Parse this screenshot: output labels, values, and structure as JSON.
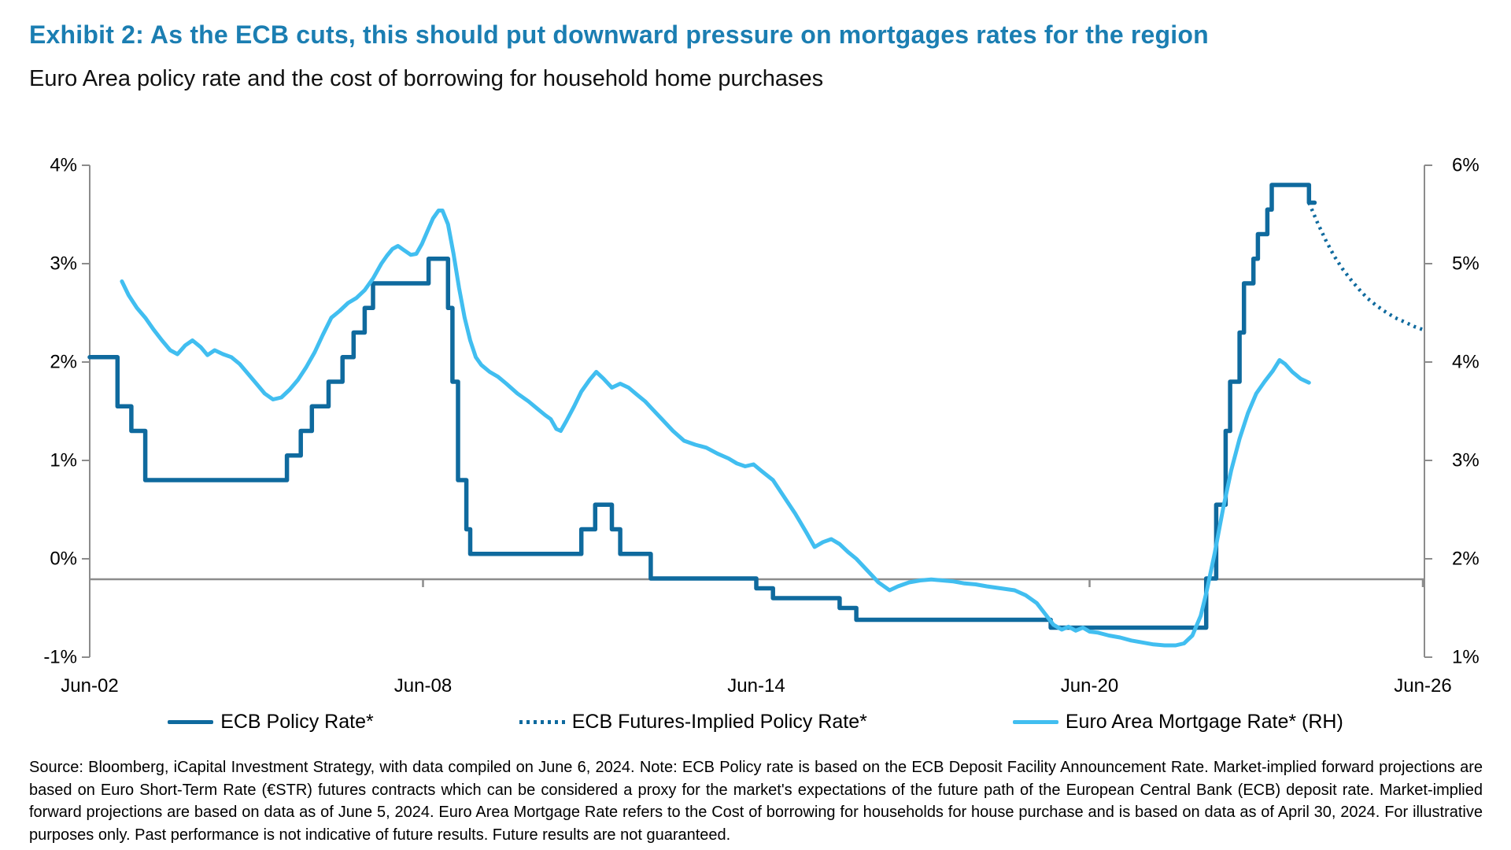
{
  "header": {
    "title": "Exhibit 2: As the ECB cuts, this should put downward pressure on mortgages rates for the region",
    "subtitle": "Euro Area policy rate and the cost of borrowing for household home purchases"
  },
  "colors": {
    "title_blue": "#1B7EB2",
    "policy_dark": "#0F6A9E",
    "mortgage_light": "#41BEF0",
    "axis_gray": "#8C8C8C"
  },
  "legend": {
    "items": [
      {
        "label": "ECB Policy Rate*",
        "swatch": "solid-dark"
      },
      {
        "label": "ECB Futures-Implied Policy Rate*",
        "swatch": "dotted-dark"
      },
      {
        "label": "Euro Area Mortgage Rate* (RH)",
        "swatch": "solid-light"
      }
    ]
  },
  "footer": {
    "source_note": "Source: Bloomberg, iCapital Investment Strategy, with data compiled on June 6, 2024. Note: ECB Policy rate is based on the ECB Deposit Facility Announcement Rate. Market-implied forward projections are based on Euro Short-Term Rate (€STR) futures contracts which can be considered a proxy for the market's expectations of the future path of the European Central Bank (ECB) deposit rate. Market-implied forward projections are based on data as of June 5, 2024. Euro Area Mortgage Rate refers to the Cost of borrowing for households for house purchase and is based on data as of April 30, 2024.  For illustrative purposes only. Past performance is not indicative of future results. Future results are not guaranteed."
  },
  "chart_data": {
    "type": "line",
    "title": "Exhibit 2: As the ECB cuts, this should put downward pressure on mortgages rates for the region",
    "subtitle": "Euro Area policy rate and the cost of borrowing for household home purchases",
    "grid": false,
    "legend_position": "bottom",
    "x_axis": {
      "unit": "years since Jun-2002",
      "ticks": [
        {
          "label": "Jun-02",
          "t": 0
        },
        {
          "label": "Jun-08",
          "t": 6
        },
        {
          "label": "Jun-14",
          "t": 12
        },
        {
          "label": "Jun-20",
          "t": 18
        },
        {
          "label": "Jun-26",
          "t": 24
        }
      ]
    },
    "left_axis": {
      "min": -1,
      "max": 4,
      "values": [
        4,
        3,
        2,
        1,
        0,
        -1
      ],
      "labels": [
        "4%",
        "3%",
        "2%",
        "1%",
        "0%",
        "-1%"
      ]
    },
    "right_axis": {
      "min": 1,
      "max": 6,
      "values": [
        6,
        5,
        4,
        3,
        2,
        1
      ],
      "labels": [
        "6%",
        "5%",
        "4%",
        "3%",
        "2%",
        "1%"
      ],
      "offset_vs_left": 2
    },
    "baseline_left_value": -0.21,
    "series": [
      {
        "name": "ECB Policy Rate*",
        "axis": "left",
        "style": "step",
        "color": "#0F6A9E",
        "width": 5.5,
        "points": [
          [
            0,
            2.05
          ],
          [
            0.5,
            1.55
          ],
          [
            0.75,
            1.3
          ],
          [
            1.0,
            0.8
          ],
          [
            3.55,
            1.05
          ],
          [
            3.8,
            1.3
          ],
          [
            4.0,
            1.55
          ],
          [
            4.3,
            1.8
          ],
          [
            4.55,
            2.05
          ],
          [
            4.75,
            2.3
          ],
          [
            4.95,
            2.55
          ],
          [
            5.1,
            2.8
          ],
          [
            6.1,
            3.05
          ],
          [
            6.45,
            2.55
          ],
          [
            6.53,
            1.8
          ],
          [
            6.63,
            0.8
          ],
          [
            6.78,
            0.3
          ],
          [
            6.85,
            0.05
          ],
          [
            8.85,
            0.3
          ],
          [
            9.1,
            0.55
          ],
          [
            9.4,
            0.3
          ],
          [
            9.55,
            0.05
          ],
          [
            10.1,
            -0.2
          ],
          [
            12.0,
            -0.3
          ],
          [
            12.3,
            -0.4
          ],
          [
            13.5,
            -0.5
          ],
          [
            13.8,
            -0.62
          ],
          [
            17.3,
            -0.7
          ],
          [
            20.1,
            -0.2
          ],
          [
            20.28,
            0.55
          ],
          [
            20.45,
            1.3
          ],
          [
            20.53,
            1.8
          ],
          [
            20.7,
            2.3
          ],
          [
            20.78,
            2.8
          ],
          [
            20.95,
            3.05
          ],
          [
            21.03,
            3.3
          ],
          [
            21.2,
            3.55
          ],
          [
            21.28,
            3.8
          ],
          [
            21.9,
            3.8
          ],
          [
            21.95,
            3.62
          ],
          [
            22.05,
            3.62
          ]
        ]
      },
      {
        "name": "ECB Futures-Implied Policy Rate*",
        "axis": "left",
        "style": "dotted",
        "color": "#0F6A9E",
        "width": 4.5,
        "points": [
          [
            21.95,
            3.62
          ],
          [
            22.1,
            3.42
          ],
          [
            22.25,
            3.24
          ],
          [
            22.4,
            3.08
          ],
          [
            22.55,
            2.95
          ],
          [
            22.7,
            2.84
          ],
          [
            22.85,
            2.74
          ],
          [
            23.0,
            2.65
          ],
          [
            23.15,
            2.58
          ],
          [
            23.3,
            2.52
          ],
          [
            23.5,
            2.45
          ],
          [
            23.7,
            2.4
          ],
          [
            23.85,
            2.36
          ],
          [
            24.0,
            2.33
          ]
        ]
      },
      {
        "name": "Euro Area Mortgage Rate* (RH)",
        "axis": "right",
        "style": "line",
        "color": "#41BEF0",
        "width": 5,
        "points": [
          [
            0.58,
            4.82
          ],
          [
            0.7,
            4.68
          ],
          [
            0.85,
            4.55
          ],
          [
            1.0,
            4.45
          ],
          [
            1.15,
            4.33
          ],
          [
            1.3,
            4.22
          ],
          [
            1.45,
            4.12
          ],
          [
            1.58,
            4.08
          ],
          [
            1.72,
            4.17
          ],
          [
            1.85,
            4.22
          ],
          [
            2.0,
            4.15
          ],
          [
            2.12,
            4.07
          ],
          [
            2.25,
            4.12
          ],
          [
            2.4,
            4.08
          ],
          [
            2.55,
            4.05
          ],
          [
            2.7,
            3.98
          ],
          [
            2.85,
            3.88
          ],
          [
            3.0,
            3.78
          ],
          [
            3.15,
            3.68
          ],
          [
            3.3,
            3.62
          ],
          [
            3.45,
            3.64
          ],
          [
            3.6,
            3.72
          ],
          [
            3.75,
            3.82
          ],
          [
            3.9,
            3.95
          ],
          [
            4.05,
            4.1
          ],
          [
            4.2,
            4.28
          ],
          [
            4.35,
            4.45
          ],
          [
            4.5,
            4.52
          ],
          [
            4.65,
            4.6
          ],
          [
            4.8,
            4.65
          ],
          [
            4.95,
            4.73
          ],
          [
            5.1,
            4.85
          ],
          [
            5.25,
            5.0
          ],
          [
            5.35,
            5.08
          ],
          [
            5.45,
            5.15
          ],
          [
            5.55,
            5.18
          ],
          [
            5.65,
            5.14
          ],
          [
            5.78,
            5.09
          ],
          [
            5.88,
            5.1
          ],
          [
            5.98,
            5.2
          ],
          [
            6.08,
            5.33
          ],
          [
            6.18,
            5.46
          ],
          [
            6.28,
            5.54
          ],
          [
            6.35,
            5.54
          ],
          [
            6.45,
            5.4
          ],
          [
            6.55,
            5.1
          ],
          [
            6.65,
            4.75
          ],
          [
            6.75,
            4.45
          ],
          [
            6.85,
            4.22
          ],
          [
            6.95,
            4.05
          ],
          [
            7.05,
            3.97
          ],
          [
            7.2,
            3.9
          ],
          [
            7.35,
            3.85
          ],
          [
            7.5,
            3.78
          ],
          [
            7.7,
            3.68
          ],
          [
            7.9,
            3.6
          ],
          [
            8.05,
            3.53
          ],
          [
            8.2,
            3.46
          ],
          [
            8.3,
            3.42
          ],
          [
            8.4,
            3.32
          ],
          [
            8.48,
            3.3
          ],
          [
            8.58,
            3.4
          ],
          [
            8.72,
            3.55
          ],
          [
            8.85,
            3.7
          ],
          [
            9.0,
            3.82
          ],
          [
            9.12,
            3.9
          ],
          [
            9.25,
            3.83
          ],
          [
            9.4,
            3.74
          ],
          [
            9.55,
            3.78
          ],
          [
            9.7,
            3.74
          ],
          [
            9.85,
            3.67
          ],
          [
            10.0,
            3.6
          ],
          [
            10.15,
            3.51
          ],
          [
            10.3,
            3.42
          ],
          [
            10.5,
            3.3
          ],
          [
            10.7,
            3.2
          ],
          [
            10.9,
            3.16
          ],
          [
            11.1,
            3.13
          ],
          [
            11.3,
            3.07
          ],
          [
            11.5,
            3.02
          ],
          [
            11.65,
            2.97
          ],
          [
            11.8,
            2.94
          ],
          [
            11.95,
            2.96
          ],
          [
            12.1,
            2.89
          ],
          [
            12.3,
            2.8
          ],
          [
            12.5,
            2.63
          ],
          [
            12.7,
            2.46
          ],
          [
            12.9,
            2.27
          ],
          [
            13.05,
            2.12
          ],
          [
            13.2,
            2.17
          ],
          [
            13.35,
            2.2
          ],
          [
            13.5,
            2.15
          ],
          [
            13.65,
            2.07
          ],
          [
            13.8,
            2.0
          ],
          [
            14.0,
            1.88
          ],
          [
            14.2,
            1.76
          ],
          [
            14.4,
            1.68
          ],
          [
            14.55,
            1.72
          ],
          [
            14.75,
            1.76
          ],
          [
            14.95,
            1.78
          ],
          [
            15.15,
            1.79
          ],
          [
            15.35,
            1.78
          ],
          [
            15.55,
            1.77
          ],
          [
            15.75,
            1.75
          ],
          [
            15.95,
            1.74
          ],
          [
            16.15,
            1.72
          ],
          [
            16.4,
            1.7
          ],
          [
            16.65,
            1.68
          ],
          [
            16.85,
            1.63
          ],
          [
            17.05,
            1.55
          ],
          [
            17.2,
            1.44
          ],
          [
            17.35,
            1.33
          ],
          [
            17.5,
            1.28
          ],
          [
            17.62,
            1.31
          ],
          [
            17.75,
            1.27
          ],
          [
            17.88,
            1.3
          ],
          [
            18.0,
            1.26
          ],
          [
            18.15,
            1.25
          ],
          [
            18.35,
            1.22
          ],
          [
            18.55,
            1.2
          ],
          [
            18.75,
            1.17
          ],
          [
            18.95,
            1.15
          ],
          [
            19.15,
            1.13
          ],
          [
            19.35,
            1.12
          ],
          [
            19.55,
            1.12
          ],
          [
            19.7,
            1.14
          ],
          [
            19.85,
            1.22
          ],
          [
            20.0,
            1.42
          ],
          [
            20.1,
            1.65
          ],
          [
            20.25,
            2.05
          ],
          [
            20.4,
            2.5
          ],
          [
            20.55,
            2.9
          ],
          [
            20.7,
            3.22
          ],
          [
            20.85,
            3.48
          ],
          [
            21.0,
            3.68
          ],
          [
            21.15,
            3.8
          ],
          [
            21.3,
            3.91
          ],
          [
            21.42,
            4.02
          ],
          [
            21.52,
            3.98
          ],
          [
            21.65,
            3.9
          ],
          [
            21.8,
            3.83
          ],
          [
            21.95,
            3.79
          ]
        ]
      }
    ]
  }
}
